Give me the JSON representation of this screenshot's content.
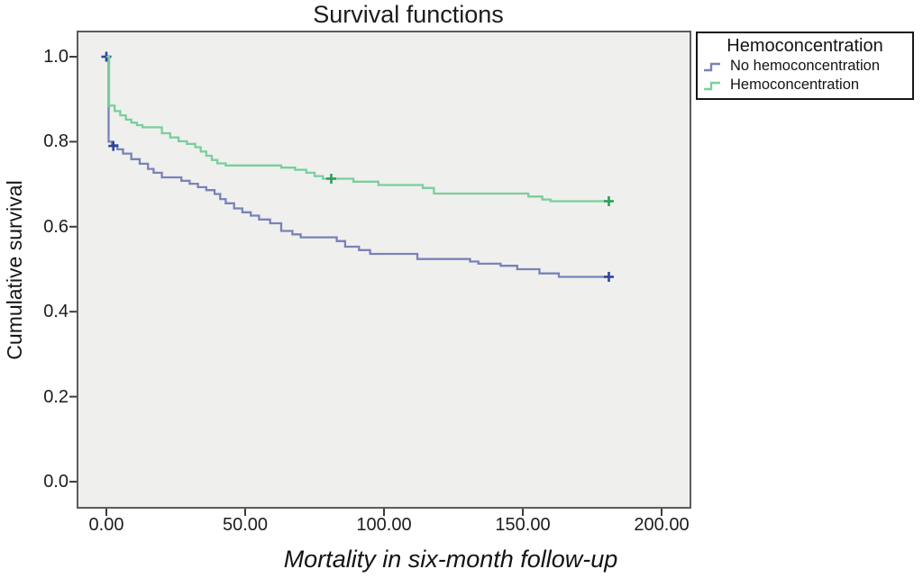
{
  "chart_data": {
    "type": "line",
    "variant": "kaplan_meier_step_survival",
    "title": "Survival functions",
    "xlabel": "Mortality in six-month follow-up",
    "ylabel": "Cumulative survival",
    "grid": false,
    "xlim": [
      -10.1,
      210.4
    ],
    "ylim": [
      -0.057,
      1.057
    ],
    "x_ticks": {
      "values": [
        0,
        50,
        100,
        150,
        200
      ],
      "labels": [
        "0.00",
        "50.00",
        "100.00",
        "150.00",
        "200.00"
      ]
    },
    "y_ticks": {
      "values": [
        0,
        0.2,
        0.4,
        0.6,
        0.8,
        1.0
      ],
      "labels": [
        "0.0",
        "0.2",
        "0.4",
        "0.6",
        "0.8",
        "1.0"
      ]
    },
    "colors": {
      "plot_background": "#efefee",
      "plot_border": "#5c5c5c",
      "tick": "#3c3c3c",
      "text": "#1a1a1a"
    },
    "legend": {
      "title": "Hemoconcentration",
      "position": "top-right",
      "border": "#161616",
      "background": "#ffffff"
    },
    "series": [
      {
        "name": "No hemoconcentration",
        "color": "#7983b8",
        "censor_color": "#2e459c",
        "steps": [
          [
            0,
            1.0
          ],
          [
            0.8,
            0.8
          ],
          [
            2,
            0.792
          ],
          [
            4,
            0.782
          ],
          [
            6,
            0.772
          ],
          [
            9,
            0.759
          ],
          [
            12,
            0.748
          ],
          [
            15,
            0.736
          ],
          [
            17,
            0.727
          ],
          [
            20,
            0.716
          ],
          [
            27,
            0.708
          ],
          [
            30,
            0.701
          ],
          [
            33,
            0.693
          ],
          [
            36,
            0.686
          ],
          [
            39,
            0.677
          ],
          [
            41,
            0.665
          ],
          [
            43,
            0.655
          ],
          [
            46,
            0.643
          ],
          [
            49,
            0.634
          ],
          [
            52,
            0.626
          ],
          [
            55,
            0.617
          ],
          [
            59,
            0.608
          ],
          [
            63,
            0.59
          ],
          [
            67,
            0.582
          ],
          [
            70,
            0.575
          ],
          [
            83,
            0.566
          ],
          [
            86,
            0.553
          ],
          [
            91,
            0.545
          ],
          [
            95,
            0.536
          ],
          [
            112,
            0.524
          ],
          [
            131,
            0.518
          ],
          [
            134,
            0.513
          ],
          [
            142,
            0.508
          ],
          [
            148,
            0.5
          ],
          [
            156,
            0.49
          ],
          [
            163,
            0.482
          ],
          [
            181,
            0.482
          ]
        ],
        "censors": [
          [
            0,
            1.0
          ],
          [
            2.5,
            0.79
          ],
          [
            181,
            0.482
          ]
        ]
      },
      {
        "name": "Hemoconcentration",
        "color": "#79cf9b",
        "censor_color": "#2f9e56",
        "steps": [
          [
            0,
            1.0
          ],
          [
            1,
            0.885
          ],
          [
            3,
            0.872
          ],
          [
            5,
            0.862
          ],
          [
            7,
            0.852
          ],
          [
            9,
            0.845
          ],
          [
            11,
            0.839
          ],
          [
            13,
            0.834
          ],
          [
            20,
            0.82
          ],
          [
            23,
            0.81
          ],
          [
            26,
            0.801
          ],
          [
            29,
            0.795
          ],
          [
            32,
            0.787
          ],
          [
            34,
            0.777
          ],
          [
            36,
            0.767
          ],
          [
            38,
            0.757
          ],
          [
            40,
            0.749
          ],
          [
            43,
            0.744
          ],
          [
            63,
            0.739
          ],
          [
            68,
            0.734
          ],
          [
            72,
            0.727
          ],
          [
            75,
            0.719
          ],
          [
            78,
            0.713
          ],
          [
            89,
            0.706
          ],
          [
            98,
            0.698
          ],
          [
            114,
            0.691
          ],
          [
            118,
            0.678
          ],
          [
            152,
            0.671
          ],
          [
            157,
            0.664
          ],
          [
            160,
            0.66
          ],
          [
            181,
            0.66
          ]
        ],
        "censors": [
          [
            81,
            0.713
          ],
          [
            181,
            0.66
          ]
        ]
      }
    ]
  }
}
